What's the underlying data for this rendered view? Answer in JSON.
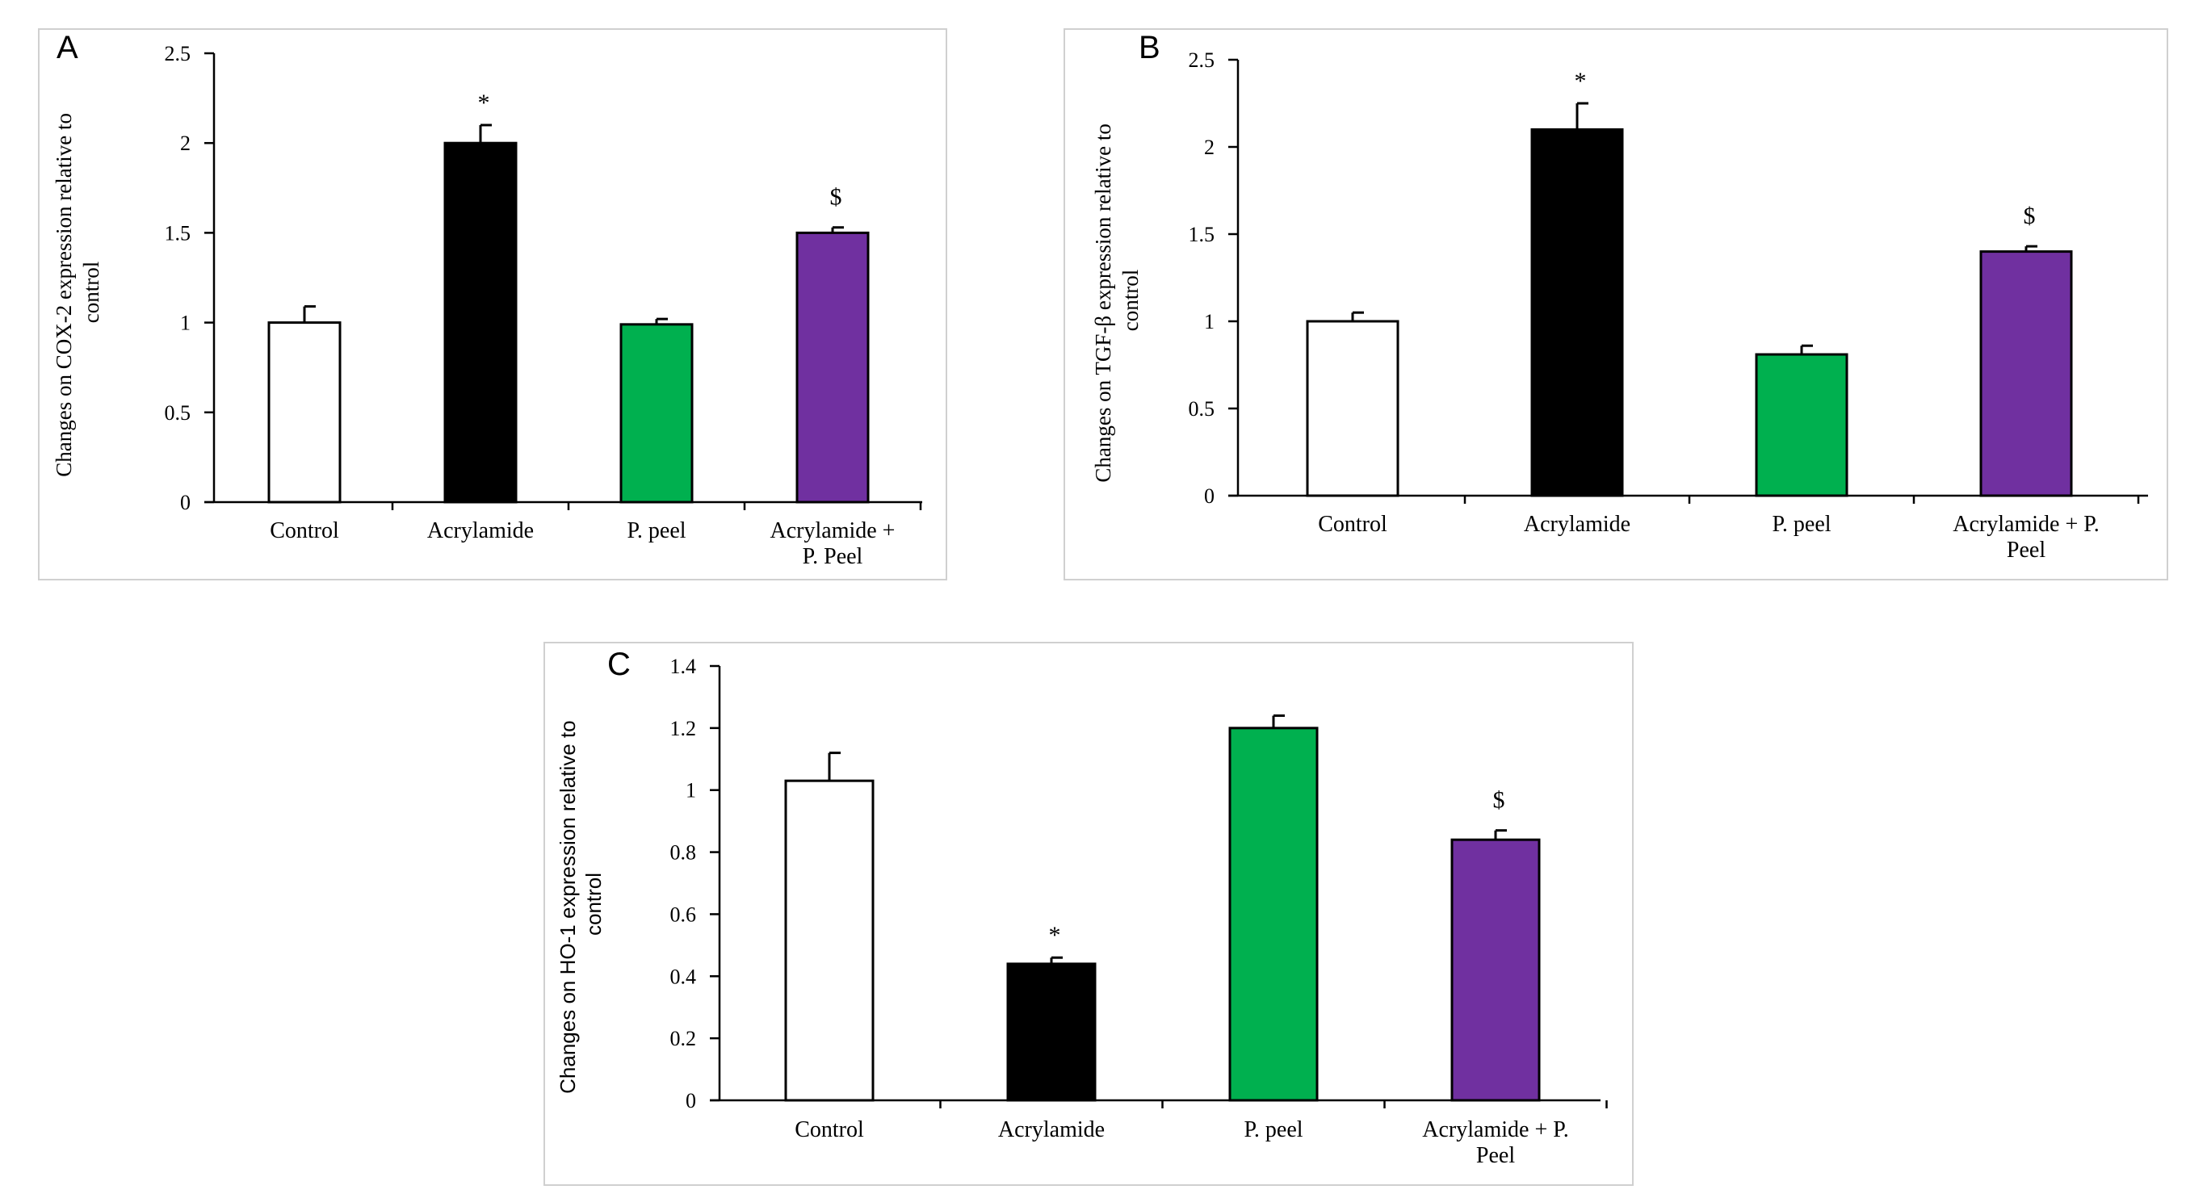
{
  "chart_data": [
    {
      "panel": "A",
      "type": "bar",
      "ylabel": "Changes on COX-2 expression relative to control",
      "ylabel_lines": [
        "Changes on COX-2 expression relative to",
        "control"
      ],
      "ylim": [
        0,
        2.5
      ],
      "yticks": [
        "0",
        "0.5",
        "1",
        "1.5",
        "2",
        "2.5"
      ],
      "ytick_values": [
        0,
        0.5,
        1,
        1.5,
        2,
        2.5
      ],
      "categories": [
        "Control",
        "Acrylamide",
        "P. peel",
        "Acrylamide + P. Peel"
      ],
      "category_lines": [
        [
          "Control"
        ],
        [
          "Acrylamide"
        ],
        [
          "P. peel"
        ],
        [
          "Acrylamide +",
          "P. Peel"
        ]
      ],
      "values": [
        1.0,
        2.0,
        0.99,
        1.5
      ],
      "errors": [
        0.09,
        0.1,
        0.03,
        0.03
      ],
      "significance": [
        "",
        "*",
        "",
        "$"
      ],
      "bar_colors": [
        "#ffffff",
        "#000000",
        "#00b04f",
        "#7030a0"
      ]
    },
    {
      "panel": "B",
      "type": "bar",
      "ylabel": "Changes on TGF-β expression relative to control",
      "ylabel_lines": [
        "Changes on TGF-β expression relative to",
        "control"
      ],
      "ylim": [
        0,
        2.5
      ],
      "yticks": [
        "0",
        "0.5",
        "1",
        "1.5",
        "2",
        "2.5"
      ],
      "ytick_values": [
        0,
        0.5,
        1,
        1.5,
        2,
        2.5
      ],
      "categories": [
        "Control",
        "Acrylamide",
        "P. peel",
        "Acrylamide + P. Peel"
      ],
      "category_lines": [
        [
          "Control"
        ],
        [
          "Acrylamide"
        ],
        [
          "P. peel"
        ],
        [
          "Acrylamide + P.",
          "Peel"
        ]
      ],
      "values": [
        1.0,
        2.1,
        0.81,
        1.4
      ],
      "errors": [
        0.05,
        0.15,
        0.05,
        0.03
      ],
      "significance": [
        "",
        "*",
        "",
        "$"
      ],
      "bar_colors": [
        "#ffffff",
        "#000000",
        "#00b04f",
        "#7030a0"
      ]
    },
    {
      "panel": "C",
      "type": "bar",
      "ylabel": "Changes on HO-1 expression relative to control",
      "ylabel_lines": [
        "Changes on HO-1 expression relative to",
        "control"
      ],
      "ylim": [
        0,
        1.4
      ],
      "yticks": [
        "0",
        "0.2",
        "0.4",
        "0.6",
        "0.8",
        "1",
        "1.2",
        "1.4"
      ],
      "ytick_values": [
        0,
        0.2,
        0.4,
        0.6,
        0.8,
        1,
        1.2,
        1.4
      ],
      "categories": [
        "Control",
        "Acrylamide",
        "P. peel",
        "Acrylamide + P. Peel"
      ],
      "category_lines": [
        [
          "Control"
        ],
        [
          "Acrylamide"
        ],
        [
          "P. peel"
        ],
        [
          "Acrylamide + P.",
          "Peel"
        ]
      ],
      "values": [
        1.03,
        0.44,
        1.2,
        0.84
      ],
      "errors": [
        0.09,
        0.02,
        0.04,
        0.03
      ],
      "significance": [
        "",
        "*",
        "",
        "$"
      ],
      "bar_colors": [
        "#ffffff",
        "#000000",
        "#00b04f",
        "#7030a0"
      ]
    }
  ]
}
